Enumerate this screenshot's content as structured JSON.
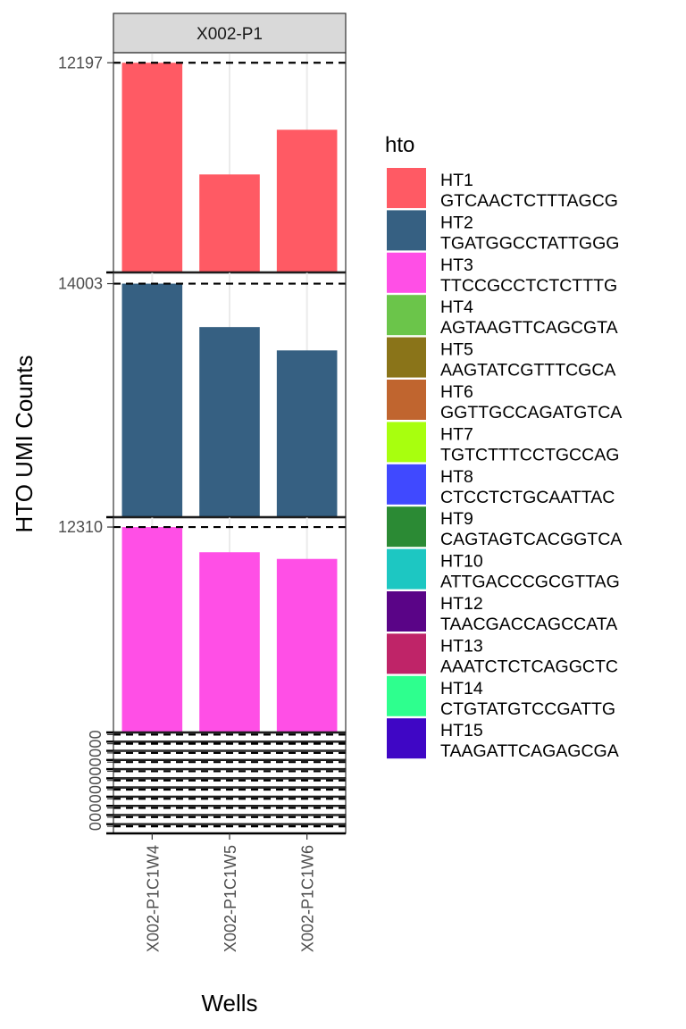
{
  "chart_data": {
    "type": "bar",
    "facet": "X002-P1",
    "xlabel": "Wells",
    "ylabel": "HTO UMI Counts",
    "categories": [
      "X002-P1C1W4",
      "X002-P1C1W5",
      "X002-P1C1W6"
    ],
    "legend_title": "hto",
    "legend_position": "right",
    "grid": true,
    "series": [
      {
        "name": "HT1",
        "barcode": "GTCAACTCTTTAGCG",
        "color": "#FF5A64",
        "max_label": "12197",
        "values": [
          12197,
          5700,
          8300
        ]
      },
      {
        "name": "HT2",
        "barcode": "TGATGGCCTATTGGG",
        "color": "#366082",
        "max_label": "14003",
        "values": [
          14003,
          11400,
          10000
        ]
      },
      {
        "name": "HT3",
        "barcode": "TTCCGCCTCTCTTTG",
        "color": "#FF4FE6",
        "max_label": "12310",
        "values": [
          12310,
          10800,
          10400
        ]
      },
      {
        "name": "HT4",
        "barcode": "AGTAAGTTCAGCGTA",
        "color": "#6BC54A",
        "max_label": "0",
        "values": [
          0,
          0,
          0
        ]
      },
      {
        "name": "HT5",
        "barcode": "AAGTATCGTTTCGCA",
        "color": "#8A7419",
        "max_label": "0",
        "values": [
          0,
          0,
          0
        ]
      },
      {
        "name": "HT6",
        "barcode": "GGTTGCCAGATGTCA",
        "color": "#C0652F",
        "max_label": "0",
        "values": [
          0,
          0,
          0
        ]
      },
      {
        "name": "HT7",
        "barcode": "TGTCTTTCCTGCCAG",
        "color": "#A8FF0E",
        "max_label": "0",
        "values": [
          0,
          0,
          0
        ]
      },
      {
        "name": "HT8",
        "barcode": "CTCCTCTGCAATTAC",
        "color": "#4049FF",
        "max_label": "0",
        "values": [
          0,
          0,
          0
        ]
      },
      {
        "name": "HT9",
        "barcode": "CAGTAGTCACGGTCA",
        "color": "#2B8A34",
        "max_label": "0",
        "values": [
          0,
          0,
          0
        ]
      },
      {
        "name": "HT10",
        "barcode": "ATTGACCCGCGTTAG",
        "color": "#1DC7C2",
        "max_label": "0",
        "values": [
          0,
          0,
          0
        ]
      },
      {
        "name": "HT12",
        "barcode": "TAACGACCAGCCATA",
        "color": "#5A0487",
        "max_label": "0",
        "values": [
          0,
          0,
          0
        ]
      },
      {
        "name": "HT13",
        "barcode": "AAATCTCTCAGGCTC",
        "color": "#BF2468",
        "max_label": "0",
        "values": [
          0,
          0,
          0
        ]
      },
      {
        "name": "HT14",
        "barcode": "CTGTATGTCCGATTG",
        "color": "#2EFF8E",
        "max_label": "0",
        "values": [
          0,
          0,
          0
        ]
      },
      {
        "name": "HT15",
        "barcode": "TAAGATTCAGAGCGA",
        "color": "#3F06C5",
        "max_label": "0",
        "values": [
          0,
          0,
          0
        ]
      }
    ]
  }
}
